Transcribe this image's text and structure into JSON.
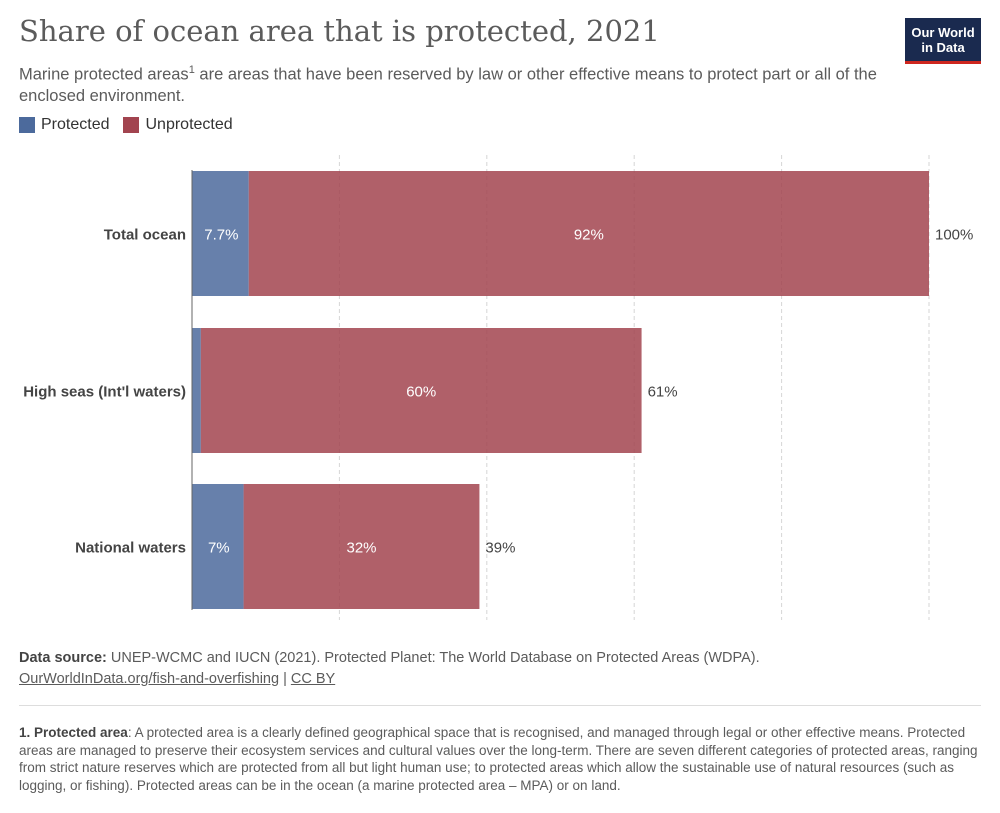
{
  "header": {
    "title": "Share of ocean area that is protected, 2021",
    "subtitle_pre": "Marine protected areas",
    "subtitle_sup": "1",
    "subtitle_post": " are areas that have been reserved by law or other effective means to protect part or all of the enclosed environment.",
    "logo_line1": "Our World",
    "logo_line2": "in Data"
  },
  "legend": [
    {
      "label": "Protected",
      "color": "#4c6a9c"
    },
    {
      "label": "Unprotected",
      "color": "#a2444f"
    }
  ],
  "chart_data": {
    "type": "bar",
    "orientation": "horizontal",
    "stacked": true,
    "title": "Share of ocean area that is protected, 2021",
    "categories": [
      "Total ocean",
      "High seas (Int'l waters)",
      "National waters"
    ],
    "series": [
      {
        "name": "Protected",
        "color": "#4c6a9c",
        "values": [
          7.7,
          1.2,
          7
        ],
        "labels": [
          "7.7%",
          "",
          "7%"
        ]
      },
      {
        "name": "Unprotected",
        "color": "#a2444f",
        "values": [
          92.3,
          59.8,
          32
        ],
        "labels": [
          "92%",
          "60%",
          "32%"
        ]
      }
    ],
    "totals": [
      "100%",
      "61%",
      "39%"
    ],
    "xlim": [
      0,
      100
    ],
    "gridlines": [
      20,
      40,
      60,
      80,
      100
    ],
    "grid": true,
    "legend_position": "top-left"
  },
  "footer": {
    "source_label": "Data source:",
    "source_text": " UNEP-WCMC and IUCN (2021). Protected Planet: The World Database on Protected Areas (WDPA).",
    "link_text": "OurWorldInData.org/fish-and-overfishing",
    "separator": " | ",
    "license": "CC BY",
    "footnote_label": "1. Protected area",
    "footnote_text": ": A protected area is a clearly defined geographical space that is recognised, and managed through legal or other effective means. Protected areas are managed to preserve their ecosystem services and cultural values over the long-term. There are seven different categories of protected areas, ranging from strict nature reserves which are protected from all but light human use; to protected areas which allow the sustainable use of natural resources (such as logging, or fishing). Protected areas can be in the ocean (a marine protected area – MPA) or on land."
  }
}
